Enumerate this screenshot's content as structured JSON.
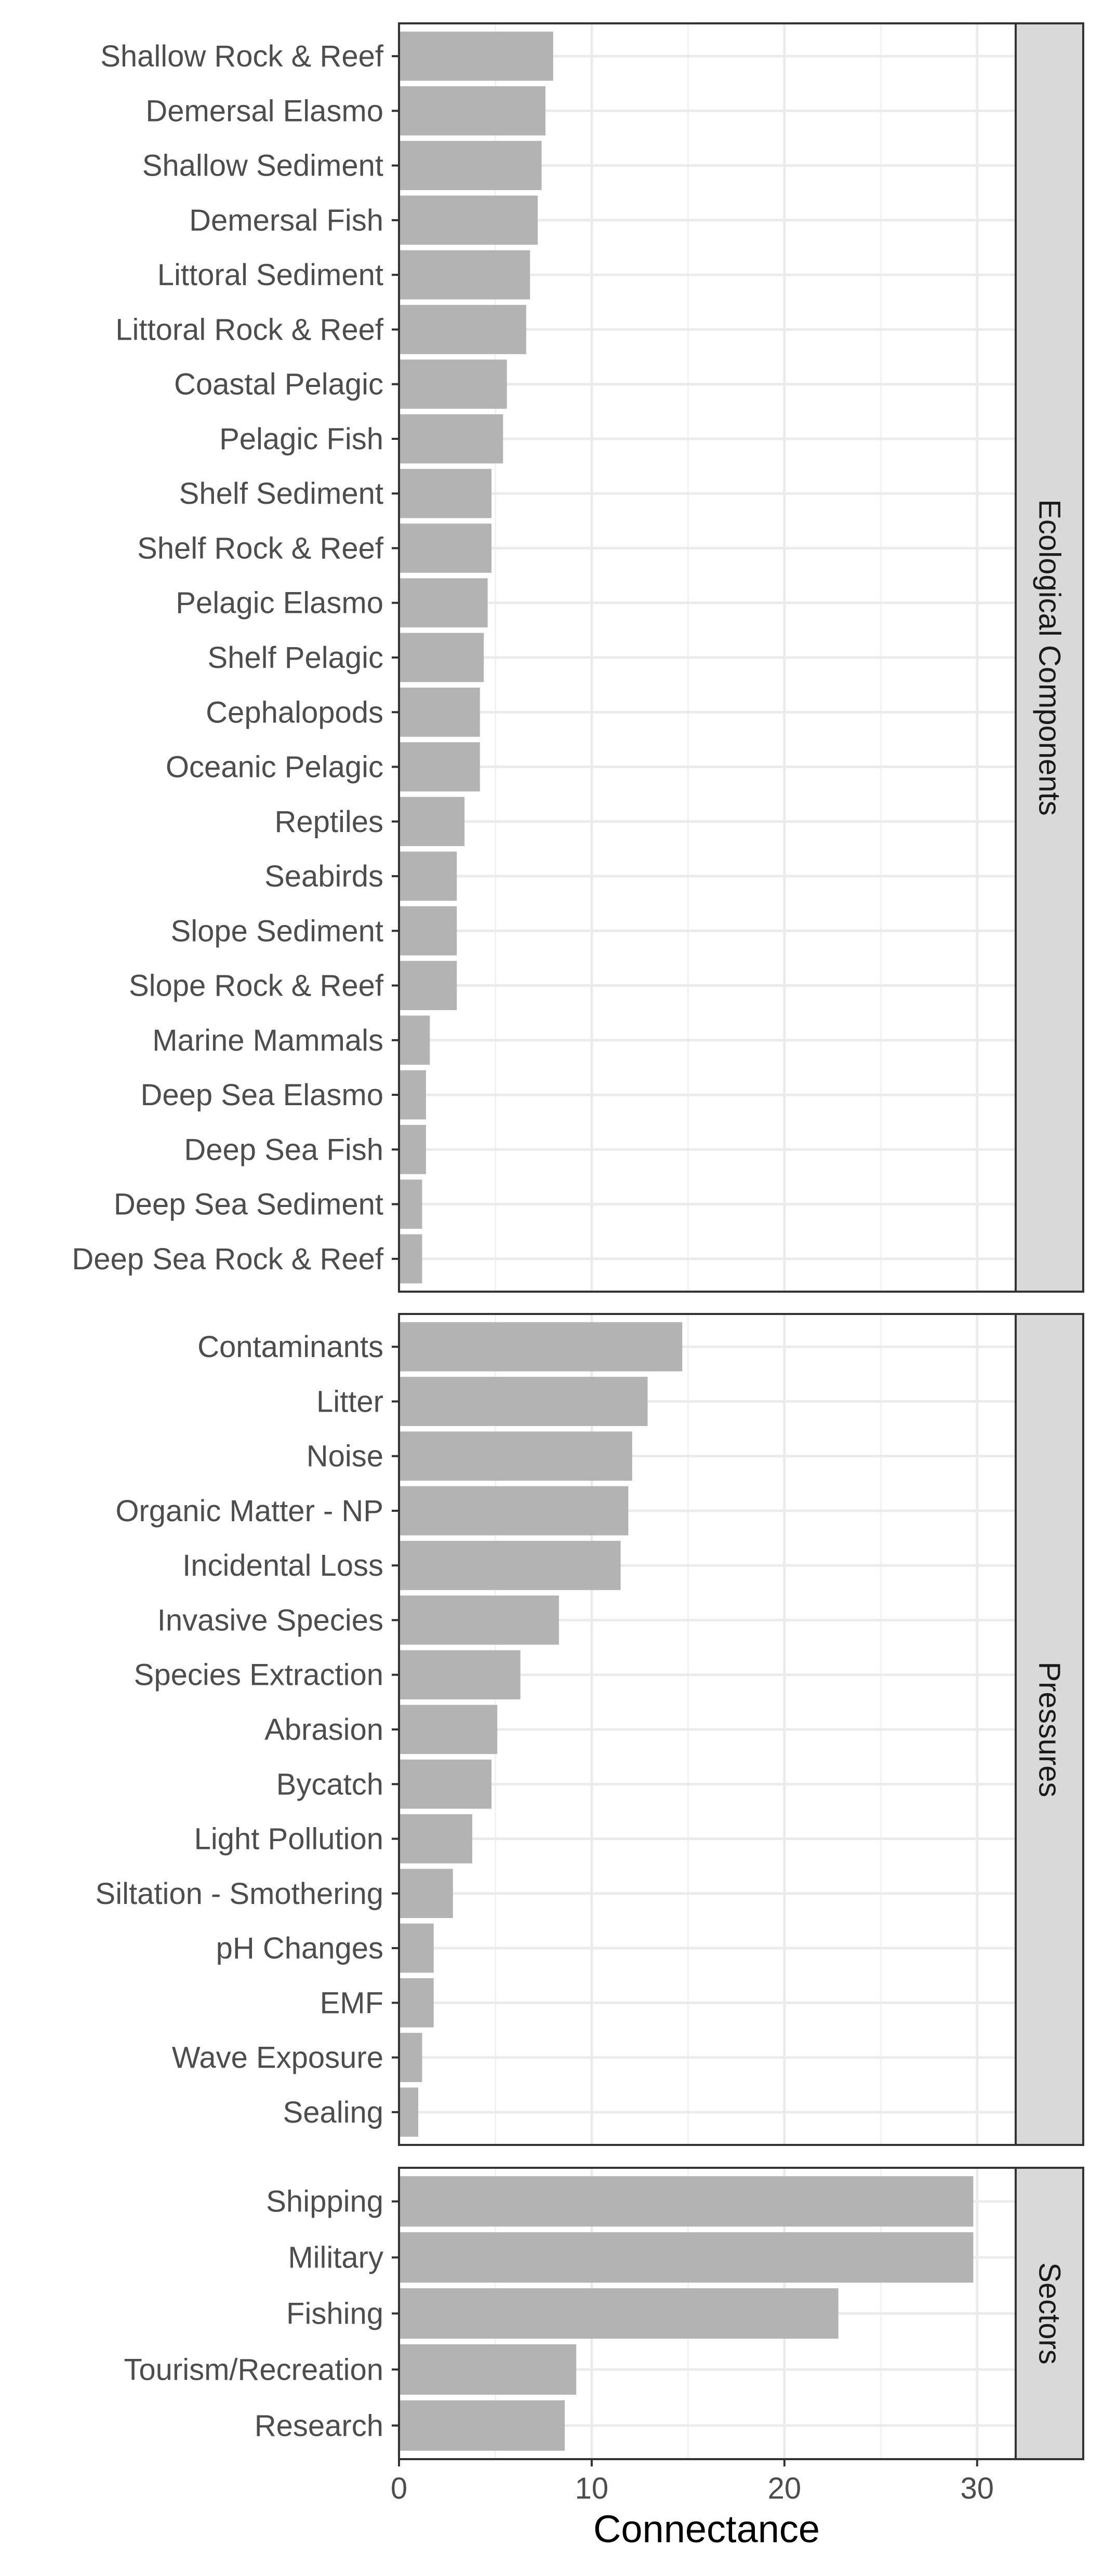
{
  "chart_data": {
    "type": "bar",
    "orientation": "horizontal",
    "xlabel": "Connectance",
    "xlim": [
      0,
      32
    ],
    "xticks": [
      0,
      10,
      20,
      30
    ],
    "grid": true,
    "bar_color": "#b3b3b3",
    "panels": [
      {
        "name": "Ecological Components",
        "categories": [
          "Shallow Rock & Reef",
          "Demersal Elasmo",
          "Shallow Sediment",
          "Demersal Fish",
          "Littoral Sediment",
          "Littoral Rock & Reef",
          "Coastal Pelagic",
          "Pelagic Fish",
          "Shelf Sediment",
          "Shelf Rock & Reef",
          "Pelagic Elasmo",
          "Shelf Pelagic",
          "Cephalopods",
          "Oceanic Pelagic",
          "Reptiles",
          "Seabirds",
          "Slope Sediment",
          "Slope Rock & Reef",
          "Marine Mammals",
          "Deep Sea Elasmo",
          "Deep Sea Fish",
          "Deep Sea Sediment",
          "Deep Sea Rock & Reef"
        ],
        "values": [
          8.0,
          7.6,
          7.4,
          7.2,
          6.8,
          6.6,
          5.6,
          5.4,
          4.8,
          4.8,
          4.6,
          4.4,
          4.2,
          4.2,
          3.4,
          3.0,
          3.0,
          3.0,
          1.6,
          1.4,
          1.4,
          1.2,
          1.2
        ]
      },
      {
        "name": "Pressures",
        "categories": [
          "Contaminants",
          "Litter",
          "Noise",
          "Organic Matter - NP",
          "Incidental Loss",
          "Invasive Species",
          "Species Extraction",
          "Abrasion",
          "Bycatch",
          "Light Pollution",
          "Siltation - Smothering",
          "pH Changes",
          "EMF",
          "Wave Exposure",
          "Sealing"
        ],
        "values": [
          14.7,
          12.9,
          12.1,
          11.9,
          11.5,
          8.3,
          6.3,
          5.1,
          4.8,
          3.8,
          2.8,
          1.8,
          1.8,
          1.2,
          1.0
        ]
      },
      {
        "name": "Sectors",
        "categories": [
          "Shipping",
          "Military",
          "Fishing",
          "Tourism/Recreation",
          "Research"
        ],
        "values": [
          29.8,
          29.8,
          22.8,
          9.2,
          8.6
        ]
      }
    ]
  }
}
